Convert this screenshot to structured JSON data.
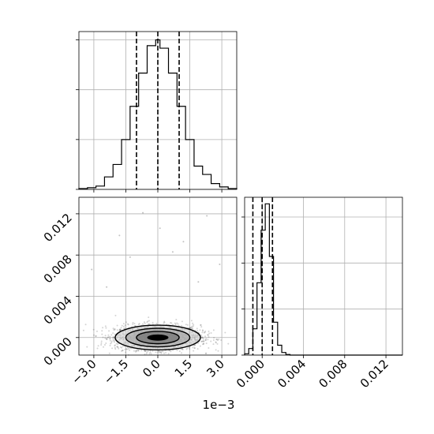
{
  "chart_data": [
    {
      "panel": "top-left",
      "type": "histogram",
      "x_range": [
        -0.0037,
        0.0037
      ],
      "bin_edges": [
        -0.0037,
        -0.0033,
        -0.0029,
        -0.0025,
        -0.0021,
        -0.0017,
        -0.0013,
        -0.0009,
        -0.0005,
        -0.0001,
        0.0001,
        0.0005,
        0.0009,
        0.0013,
        0.0017,
        0.0021,
        0.0025,
        0.0029,
        0.0033,
        0.0037
      ],
      "counts": [
        1,
        2,
        4,
        15,
        30,
        60,
        100,
        140,
        173,
        180,
        170,
        140,
        100,
        60,
        28,
        18,
        7,
        3,
        1
      ],
      "ylim": [
        0,
        190
      ],
      "y_ticks": [
        0,
        60,
        120,
        180
      ],
      "quantile_lines": [
        -0.001,
        0.0,
        0.001
      ],
      "x_ticks": [
        -0.003,
        -0.0015,
        0.0,
        0.0015,
        0.003
      ],
      "grid": true
    },
    {
      "panel": "bottom-left",
      "type": "scatter_with_contours",
      "x_range": [
        -0.0037,
        0.0037
      ],
      "y_range": [
        -0.0017,
        0.0136
      ],
      "x_ticks": [
        -0.003,
        -0.0015,
        0.0,
        0.0015,
        0.003
      ],
      "x_tick_labels": [
        "−3.0",
        "−1.5",
        "0.0",
        "1.5",
        "3.0"
      ],
      "x_offset_label": "1e−3",
      "y_ticks": [
        0.0,
        0.004,
        0.008,
        0.012
      ],
      "y_tick_labels": [
        "0.000",
        "0.004",
        "0.008",
        "0.012"
      ],
      "center": [
        0.0,
        0.0
      ],
      "sigma": [
        0.001,
        0.0006
      ],
      "contour_levels_sigma": [
        1.0,
        1.5,
        2.0
      ],
      "outliers": [
        [
          -0.0018,
          0.0099
        ],
        [
          0.0023,
          0.0118
        ],
        [
          -0.0031,
          0.0066
        ],
        [
          0.0001,
          0.0106
        ],
        [
          0.0012,
          0.0093
        ],
        [
          -0.0007,
          0.0121
        ],
        [
          0.0029,
          0.0071
        ],
        [
          -0.0024,
          0.0049
        ],
        [
          0.0019,
          0.0054
        ],
        [
          -0.0013,
          0.0078
        ],
        [
          0.0007,
          0.0083
        ]
      ],
      "grid": true
    },
    {
      "panel": "bottom-right",
      "type": "histogram",
      "x_range": [
        -0.0017,
        0.0136
      ],
      "bin_edges": [
        -0.0017,
        -0.0013,
        -0.0009,
        -0.0005,
        -0.0001,
        0.0003,
        0.0007,
        0.0011,
        0.0015,
        0.0019,
        0.0023,
        0.0027
      ],
      "counts": [
        2,
        10,
        40,
        110,
        190,
        230,
        150,
        50,
        15,
        4,
        1
      ],
      "ylim": [
        0,
        240
      ],
      "y_ticks": [
        0,
        70,
        140,
        210
      ],
      "quantile_lines": [
        -0.0009,
        0.0,
        0.001
      ],
      "x_ticks": [
        0.0,
        0.004,
        0.008,
        0.012
      ],
      "x_tick_labels": [
        "0.000",
        "0.004",
        "0.008",
        "0.012"
      ],
      "grid": true
    }
  ]
}
